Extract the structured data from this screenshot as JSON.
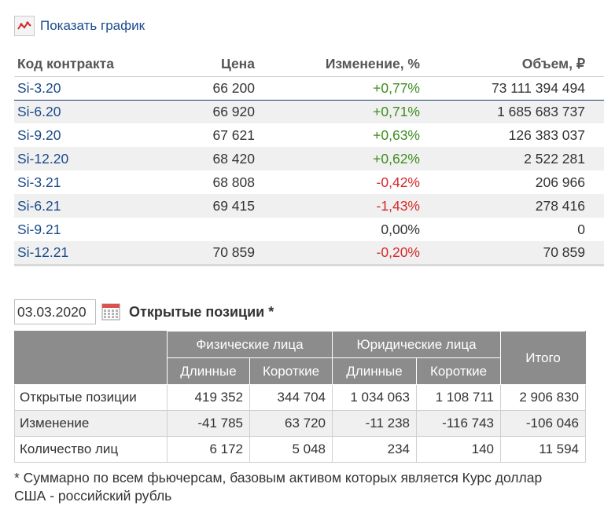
{
  "show_chart": {
    "label": "Показать график",
    "icon": "chart-icon"
  },
  "quotes": {
    "headers": {
      "code": "Код контракта",
      "price": "Цена",
      "change": "Изменение, %",
      "volume": "Объем, ₽"
    },
    "rows": [
      {
        "code": "Si-3.20",
        "price": "66 200",
        "change": "+0,77%",
        "volume": "73 111 394 494"
      },
      {
        "code": "Si-6.20",
        "price": "66 920",
        "change": "+0,71%",
        "volume": "1 685 683 737"
      },
      {
        "code": "Si-9.20",
        "price": "67 621",
        "change": "+0,63%",
        "volume": "126 383 037"
      },
      {
        "code": "Si-12.20",
        "price": "68 420",
        "change": "+0,62%",
        "volume": "2 522 281"
      },
      {
        "code": "Si-3.21",
        "price": "68 808",
        "change": "-0,42%",
        "volume": "206 966"
      },
      {
        "code": "Si-6.21",
        "price": "69 415",
        "change": "-1,43%",
        "volume": "278 416"
      },
      {
        "code": "Si-9.21",
        "price": "",
        "change": "0,00%",
        "volume": "0"
      },
      {
        "code": "Si-12.21",
        "price": "70 859",
        "change": "-0,20%",
        "volume": "70 859"
      }
    ],
    "colors": {
      "positive": "#3c8d1e",
      "negative": "#d22b2b",
      "link": "#1a4b8c"
    }
  },
  "open_interest": {
    "date": "03.03.2020",
    "calendar_icon": "calendar-icon",
    "title": "Открытые позиции *",
    "groups": {
      "individuals": "Физические лица",
      "legal": "Юридические лица",
      "total": "Итого"
    },
    "subheaders": {
      "long": "Длинные",
      "short": "Короткие"
    },
    "rows": [
      {
        "label": "Открытые позиции",
        "ind_long": "419 352",
        "ind_short": "344 704",
        "leg_long": "1 034 063",
        "leg_short": "1 108 711",
        "total": "2 906 830"
      },
      {
        "label": "Изменение",
        "ind_long": "-41 785",
        "ind_short": "63 720",
        "leg_long": "-11 238",
        "leg_short": "-116 743",
        "total": "-106 046"
      },
      {
        "label": "Количество лиц",
        "ind_long": "6 172",
        "ind_short": "5 048",
        "leg_long": "234",
        "leg_short": "140",
        "total": "11 594"
      }
    ],
    "header_color": "#8c8c8c"
  },
  "footnote": "* Суммарно по всем фьючерсам, базовым активом которых является Курс доллар США - российский рубль"
}
